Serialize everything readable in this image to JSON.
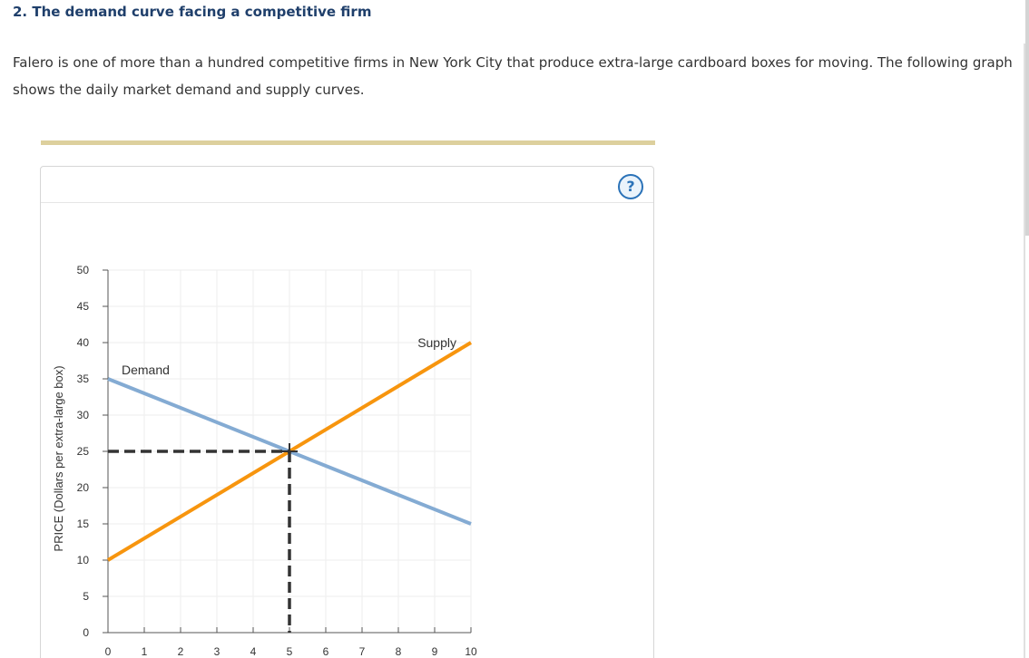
{
  "page": {
    "title": "2. The demand curve facing a competitive firm",
    "intro": "Falero is one of more than a hundred competitive firms in New York City that produce extra-large cardboard boxes for moving. The following graph shows the daily market demand and supply curves."
  },
  "help_icon": {
    "name": "help-icon",
    "glyph": "?"
  },
  "colors": {
    "title": "#1f3f6b",
    "divider": "#ddd09d",
    "demand": "#84abd3",
    "supply": "#f7950e",
    "equilibrium": "#333333",
    "grid": "#eeeeee",
    "help": "#2a72b8"
  },
  "chart_data": {
    "type": "line",
    "ylabel": "PRICE (Dollars per extra-large box)",
    "xlabel": "",
    "xlim": [
      0,
      10
    ],
    "ylim": [
      0,
      50
    ],
    "x_ticks": [
      0,
      1,
      2,
      3,
      4,
      5,
      6,
      7,
      8,
      9,
      10
    ],
    "y_ticks": [
      0,
      5,
      10,
      15,
      20,
      25,
      30,
      35,
      40,
      45,
      50
    ],
    "grid": true,
    "series": [
      {
        "name": "Demand",
        "color": "#84abd3",
        "points": [
          [
            0,
            35
          ],
          [
            10,
            15
          ]
        ]
      },
      {
        "name": "Supply",
        "color": "#f7950e",
        "points": [
          [
            0,
            10
          ],
          [
            10,
            40
          ]
        ]
      }
    ],
    "equilibrium": {
      "x": 5,
      "y": 25,
      "style": "dashed"
    }
  }
}
